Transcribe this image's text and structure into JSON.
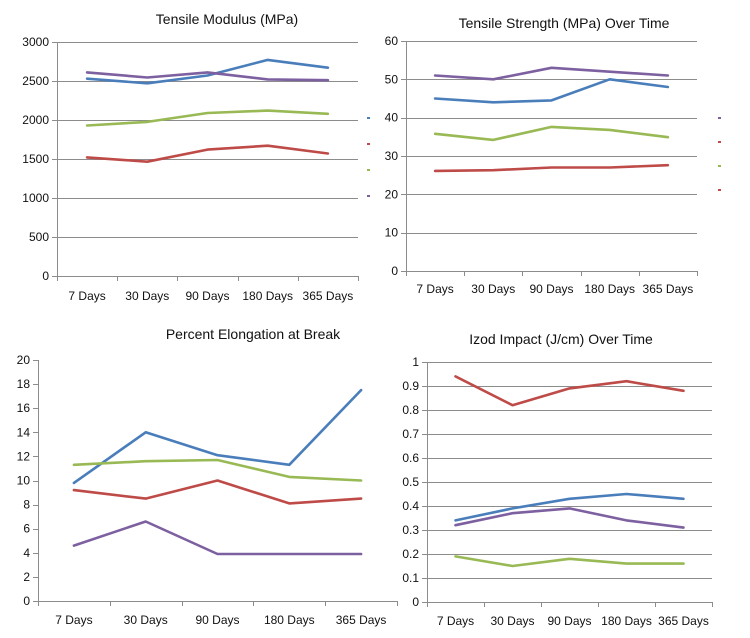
{
  "colors": {
    "blue": "#4a7ebb",
    "red": "#be4b48",
    "green": "#98b954",
    "purple": "#7d60a0",
    "axis": "#8c8c8c"
  },
  "chart_data": [
    {
      "type": "line",
      "title": "Tensile Modulus (MPa)",
      "categories": [
        "7 Days",
        "30 Days",
        "90 Days",
        "180 Days",
        "365 Days"
      ],
      "ylim": [
        0,
        3000
      ],
      "yticks": [
        "0",
        "500",
        "1000",
        "1500",
        "2000",
        "2500",
        "3000"
      ],
      "grid": true,
      "legend_marks": [
        "blue",
        "red",
        "green",
        "purple"
      ],
      "series": [
        {
          "color": "blue",
          "values": [
            2530,
            2470,
            2570,
            2770,
            2670
          ]
        },
        {
          "color": "purple",
          "values": [
            2610,
            2545,
            2610,
            2520,
            2510
          ]
        },
        {
          "color": "green",
          "values": [
            1930,
            1975,
            2090,
            2120,
            2080
          ]
        },
        {
          "color": "red",
          "values": [
            1520,
            1465,
            1620,
            1670,
            1570
          ]
        }
      ]
    },
    {
      "type": "line",
      "title": "Tensile Strength (MPa) Over Time",
      "categories": [
        "7 Days",
        "30 Days",
        "90 Days",
        "180 Days",
        "365 Days"
      ],
      "ylim": [
        0,
        60
      ],
      "yticks": [
        "0",
        "10",
        "20",
        "30",
        "40",
        "50",
        "60"
      ],
      "grid": true,
      "legend_marks": [
        "purple",
        "red",
        "green",
        "red"
      ],
      "series": [
        {
          "color": "purple",
          "values": [
            51,
            50,
            53,
            52,
            51
          ]
        },
        {
          "color": "blue",
          "values": [
            45,
            44,
            44.5,
            50,
            48
          ]
        },
        {
          "color": "green",
          "values": [
            35.8,
            34.2,
            37.6,
            36.8,
            34.9
          ]
        },
        {
          "color": "red",
          "values": [
            26.1,
            26.3,
            27,
            27,
            27.6
          ]
        }
      ]
    },
    {
      "type": "line",
      "title": "Percent Elongation at Break",
      "categories": [
        "7 Days",
        "30 Days",
        "90 Days",
        "180 Days",
        "365 Days"
      ],
      "ylim": [
        0,
        20
      ],
      "yticks": [
        "0",
        "2",
        "4",
        "6",
        "8",
        "10",
        "12",
        "14",
        "16",
        "18",
        "20"
      ],
      "grid": false,
      "legend_marks": [],
      "series": [
        {
          "color": "blue",
          "values": [
            9.8,
            14,
            12.1,
            11.3,
            17.5
          ]
        },
        {
          "color": "green",
          "values": [
            11.3,
            11.6,
            11.7,
            10.3,
            10
          ]
        },
        {
          "color": "red",
          "values": [
            9.2,
            8.5,
            10,
            8.1,
            8.5
          ]
        },
        {
          "color": "purple",
          "values": [
            4.6,
            6.6,
            3.9,
            3.9,
            3.9
          ]
        }
      ]
    },
    {
      "type": "line",
      "title": "Izod Impact  (J/cm) Over Time",
      "categories": [
        "7 Days",
        "30 Days",
        "90 Days",
        "180 Days",
        "365 Days"
      ],
      "ylim": [
        0,
        1
      ],
      "yticks": [
        "0",
        "0.1",
        "0.2",
        "0.3",
        "0.4",
        "0.5",
        "0.6",
        "0.7",
        "0.8",
        "0.9",
        "1"
      ],
      "grid": true,
      "legend_marks": [],
      "series": [
        {
          "color": "red",
          "values": [
            0.94,
            0.82,
            0.89,
            0.92,
            0.88
          ]
        },
        {
          "color": "blue",
          "values": [
            0.34,
            0.39,
            0.43,
            0.45,
            0.43
          ]
        },
        {
          "color": "purple",
          "values": [
            0.32,
            0.37,
            0.39,
            0.34,
            0.31
          ]
        },
        {
          "color": "green",
          "values": [
            0.19,
            0.15,
            0.18,
            0.16,
            0.16
          ]
        }
      ]
    }
  ]
}
